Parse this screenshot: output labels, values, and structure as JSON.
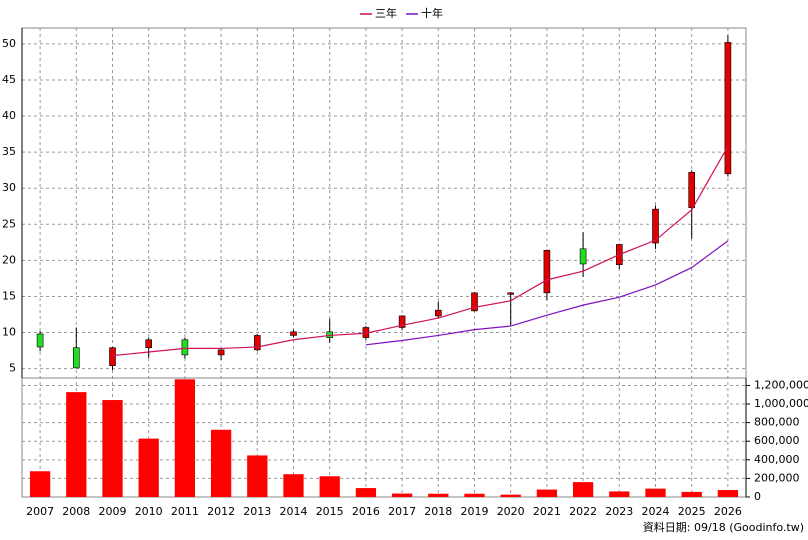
{
  "chart_data": [
    {
      "type": "candlestick",
      "categories": [
        "2007",
        "2008",
        "2009",
        "2010",
        "2011",
        "2012",
        "2013",
        "2014",
        "2015",
        "2016",
        "2017",
        "2018",
        "2019",
        "2020",
        "2021",
        "2022",
        "2023",
        "2024",
        "2025",
        "2026"
      ],
      "open": [
        9.8,
        7.9,
        5.4,
        7.9,
        9.0,
        6.9,
        7.6,
        9.6,
        10.1,
        9.3,
        10.7,
        12.3,
        13.0,
        15.3,
        15.5,
        21.6,
        19.4,
        22.4,
        27.3,
        32.0
      ],
      "high": [
        10.2,
        10.7,
        8.0,
        9.3,
        9.3,
        7.8,
        9.8,
        10.4,
        11.9,
        10.9,
        12.4,
        14.3,
        15.6,
        15.6,
        21.5,
        23.9,
        22.3,
        27.6,
        32.5,
        51.2
      ],
      "low": [
        7.4,
        5.1,
        4.8,
        6.5,
        6.4,
        6.2,
        7.4,
        9.3,
        8.6,
        9.0,
        10.4,
        12.0,
        12.9,
        11.0,
        14.5,
        17.7,
        18.8,
        21.6,
        23.0,
        31.6
      ],
      "close": [
        8.0,
        5.1,
        7.9,
        9.0,
        6.9,
        7.6,
        9.6,
        10.1,
        9.3,
        10.7,
        12.3,
        13.1,
        15.5,
        15.5,
        21.4,
        19.5,
        22.2,
        27.1,
        32.2,
        50.2
      ],
      "up_color": "#e00000",
      "down_color": "#22dd22",
      "series": [
        {
          "name": "三年",
          "color": "#d0105a",
          "values": [
            null,
            null,
            6.8,
            7.3,
            7.8,
            7.8,
            8.0,
            9.0,
            9.6,
            9.9,
            11.0,
            12.0,
            13.5,
            14.4,
            17.3,
            18.5,
            20.8,
            22.8,
            27.0,
            35.8
          ]
        },
        {
          "name": "十年",
          "color": "#8010c0",
          "values": [
            null,
            null,
            null,
            null,
            null,
            null,
            null,
            null,
            null,
            8.3,
            8.9,
            9.6,
            10.4,
            10.9,
            12.4,
            13.8,
            14.9,
            16.6,
            19.0,
            22.7
          ]
        }
      ],
      "ylim": [
        3.7,
        52.2
      ],
      "yticks": [
        5,
        10,
        15,
        20,
        25,
        30,
        35,
        40,
        45,
        50
      ],
      "grid": true,
      "legend": "top"
    },
    {
      "type": "bar",
      "values": [
        277000,
        1128000,
        1043000,
        628000,
        1266000,
        723000,
        447000,
        245000,
        223000,
        96000,
        37000,
        35000,
        35000,
        25000,
        80000,
        160000,
        60000,
        90000,
        55000,
        75000
      ],
      "color": "#ff0000",
      "ylim": [
        0,
        1280000
      ],
      "yticks": [
        0,
        {
          "value": 200000,
          "label": "200,000"
        },
        {
          "value": 400000,
          "label": "400,000"
        },
        {
          "value": 600000,
          "label": "600,000"
        },
        {
          "value": 800000,
          "label": "800,000"
        },
        {
          "value": 1000000,
          "label": "1,000,000"
        },
        {
          "value": 1200000,
          "label": "1,200,000"
        }
      ],
      "grid": true
    }
  ],
  "footer": "資料日期: 09/18 (Goodinfo.tw)"
}
